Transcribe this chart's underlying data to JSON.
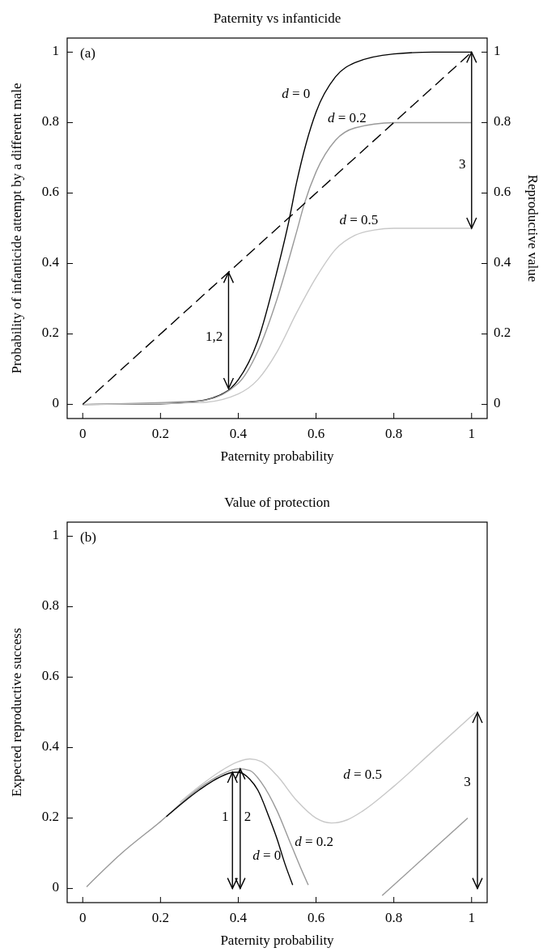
{
  "chart_data": [
    {
      "type": "line",
      "title": "Paternity vs infanticide",
      "xlabel": "Paternity probability",
      "ylabel": "Probability of infanticide attempt by a different male",
      "y2label": "Reproductive value",
      "annotations": [
        "(a)"
      ],
      "xlim": [
        -0.04,
        1.04
      ],
      "ylim": [
        -0.04,
        1.04
      ],
      "y2lim": [
        -0.04,
        1.04
      ],
      "xticks": [
        0,
        0.2,
        0.4,
        0.6,
        0.8,
        1
      ],
      "yticks": [
        0,
        0.2,
        0.4,
        0.6,
        0.8,
        1
      ],
      "y2ticks": [
        0,
        0.2,
        0.4,
        0.6,
        0.8,
        1
      ],
      "grid": false,
      "series": [
        {
          "name": "d = 0",
          "color": "#000000",
          "x": [
            0,
            0.2,
            0.3,
            0.35,
            0.38,
            0.4,
            0.45,
            0.5,
            0.53,
            0.55,
            0.6,
            0.65,
            0.7,
            0.8,
            0.9,
            1
          ],
          "values": [
            0,
            0.002,
            0.01,
            0.025,
            0.045,
            0.07,
            0.18,
            0.38,
            0.52,
            0.63,
            0.83,
            0.93,
            0.97,
            0.995,
            1,
            1
          ]
        },
        {
          "name": "d = 0.2",
          "color": "#999999",
          "x": [
            0,
            0.3,
            0.4,
            0.45,
            0.5,
            0.55,
            0.57,
            0.6,
            0.65,
            0.7,
            0.8,
            1
          ],
          "values": [
            0,
            0.01,
            0.06,
            0.15,
            0.3,
            0.49,
            0.57,
            0.66,
            0.75,
            0.785,
            0.8,
            0.8
          ]
        },
        {
          "name": "d = 0.5",
          "color": "#c8c8c8",
          "x": [
            0,
            0.3,
            0.4,
            0.45,
            0.5,
            0.55,
            0.6,
            0.65,
            0.7,
            0.75,
            0.8,
            1
          ],
          "values": [
            0,
            0.005,
            0.03,
            0.07,
            0.15,
            0.26,
            0.36,
            0.44,
            0.48,
            0.495,
            0.5,
            0.5
          ]
        },
        {
          "color": "#000000",
          "line_style": "dashed",
          "x": [
            0,
            1
          ],
          "values": [
            0,
            1
          ]
        },
        {
          "name": "1,2",
          "color": "#000000",
          "x": [
            0.375,
            0.375
          ],
          "values": [
            0.045,
            0.375
          ]
        },
        {
          "name": "3",
          "color": "#000000",
          "x": [
            1,
            1
          ],
          "values": [
            0.5,
            1
          ]
        }
      ]
    },
    {
      "type": "line",
      "title": "Value of protection",
      "xlabel": "Paternity probability",
      "ylabel": "Expected reproductive success",
      "annotations": [
        "(b)"
      ],
      "xlim": [
        -0.04,
        1.04
      ],
      "ylim": [
        -0.04,
        1.04
      ],
      "xticks": [
        0,
        0.2,
        0.4,
        0.6,
        0.8,
        1
      ],
      "yticks": [
        0,
        0.2,
        0.4,
        0.6,
        0.8,
        1
      ],
      "grid": false,
      "series": [
        {
          "name": "d = 0.5",
          "color": "#c8c8c8",
          "x": [
            0.25,
            0.3,
            0.35,
            0.4,
            0.43,
            0.46,
            0.5,
            0.55,
            0.6,
            0.64,
            0.68,
            0.72,
            0.8,
            0.9,
            1.01
          ],
          "values": [
            0.245,
            0.29,
            0.33,
            0.36,
            0.368,
            0.36,
            0.32,
            0.25,
            0.2,
            0.186,
            0.195,
            0.22,
            0.29,
            0.39,
            0.5
          ]
        },
        {
          "name": "d = 0.2",
          "color": "#999999",
          "x": [
            0.01,
            0.1,
            0.2,
            0.3,
            0.35,
            0.4,
            0.43,
            0.46,
            0.5,
            0.53,
            0.56,
            0.58
          ],
          "values": [
            0.005,
            0.1,
            0.19,
            0.285,
            0.32,
            0.34,
            0.335,
            0.3,
            0.22,
            0.14,
            0.06,
            0.01
          ]
        },
        {
          "color": "#999999",
          "x": [
            0.77,
            0.99
          ],
          "values": [
            -0.02,
            0.2
          ]
        },
        {
          "name": "d = 0",
          "color": "#000000",
          "x": [
            0.215,
            0.3,
            0.35,
            0.39,
            0.4,
            0.43,
            0.45,
            0.48,
            0.5,
            0.52,
            0.54
          ],
          "values": [
            0.204,
            0.28,
            0.315,
            0.33,
            0.33,
            0.31,
            0.28,
            0.2,
            0.14,
            0.07,
            0.01
          ]
        },
        {
          "name": "1",
          "color": "#000000",
          "x": [
            0.385,
            0.385
          ],
          "values": [
            0,
            0.33
          ]
        },
        {
          "name": "2",
          "color": "#000000",
          "x": [
            0.405,
            0.405
          ],
          "values": [
            0,
            0.34
          ]
        },
        {
          "name": "3",
          "color": "#000000",
          "x": [
            1.015,
            1.015
          ],
          "values": [
            0,
            0.5
          ]
        }
      ]
    }
  ]
}
